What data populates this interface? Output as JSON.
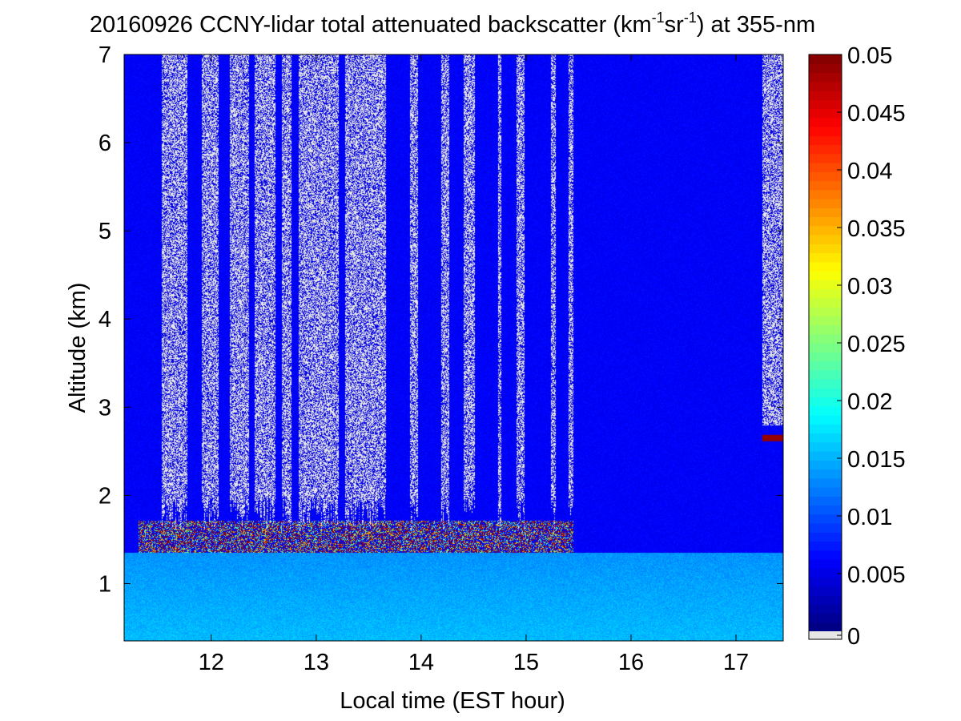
{
  "chart_data": {
    "type": "heatmap",
    "title": {
      "main": "20160926 CCNY-lidar total attenuated backscatter (km",
      "sup1": "-1",
      "mid": "sr",
      "sup2": "-1",
      "tail": ") at 355-nm"
    },
    "xlabel": "Local time (EST hour)",
    "ylabel": "Altitude (km)",
    "xlim": [
      11.17,
      17.45
    ],
    "ylim": [
      0.35,
      7
    ],
    "x_ticks": [
      12,
      13,
      14,
      15,
      16,
      17
    ],
    "y_ticks": [
      1,
      2,
      3,
      4,
      5,
      6,
      7
    ],
    "colorbar": {
      "range": [
        0,
        0.05
      ],
      "ticks": [
        "0",
        "0.005",
        "0.01",
        "0.015",
        "0.02",
        "0.025",
        "0.03",
        "0.035",
        "0.04",
        "0.045",
        "0.05"
      ],
      "below_range_color": "#e6e6e6",
      "colormap": "jet"
    },
    "features": {
      "near_surface_layer_km": [
        0.35,
        1.35
      ],
      "cloud_base_layer_km": [
        1.35,
        1.7
      ],
      "cloud_layer_time_hours": [
        11.3,
        15.45
      ],
      "elevated_layer_km": 2.65,
      "elevated_layer_time_hours": [
        17.25,
        17.45
      ]
    }
  }
}
